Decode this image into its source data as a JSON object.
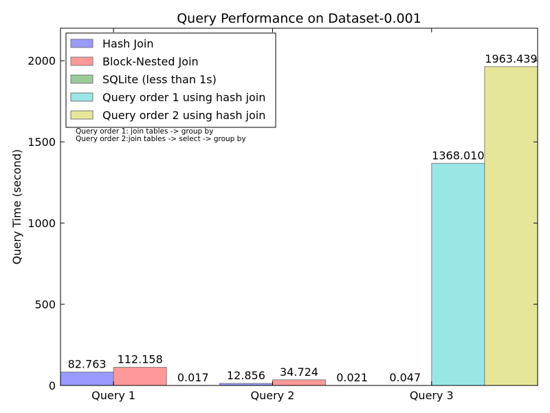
{
  "chart_data": {
    "type": "bar",
    "title": "Query Performance on Dataset-0.001",
    "xlabel": "",
    "ylabel": "Query Time (second)",
    "ylim": [
      0,
      2200
    ],
    "yticks": [
      0,
      500,
      1000,
      1500,
      2000
    ],
    "categories": [
      "Query 1",
      "Query 2",
      "Query 3"
    ],
    "series": [
      {
        "name": "Hash Join",
        "color": "#9999ff",
        "values": [
          82.763,
          12.856,
          null
        ],
        "labels": [
          "82.763",
          "12.856",
          ""
        ]
      },
      {
        "name": "Block-Nested Join",
        "color": "#ff9999",
        "values": [
          112.158,
          34.724,
          null
        ],
        "labels": [
          "112.158",
          "34.724",
          ""
        ]
      },
      {
        "name": "SQLite (less than 1s)",
        "color": "#99cc99",
        "values": [
          0.017,
          0.021,
          0.047
        ],
        "labels": [
          "0.017",
          "0.021",
          "0.047"
        ]
      },
      {
        "name": "Query order 1 using hash join",
        "color": "#99e6e6",
        "values": [
          null,
          null,
          1368.01
        ],
        "labels": [
          "",
          "",
          "1368.010"
        ]
      },
      {
        "name": "Query order 2 using hash join",
        "color": "#e6e699",
        "values": [
          null,
          null,
          1963.439
        ],
        "labels": [
          "",
          "",
          "1963.439"
        ]
      }
    ],
    "legend_position": "top-left",
    "notes": [
      "Query order 1: join tables -> group by",
      "Query order 2:join tables -> select -> group by"
    ],
    "grid": false
  }
}
